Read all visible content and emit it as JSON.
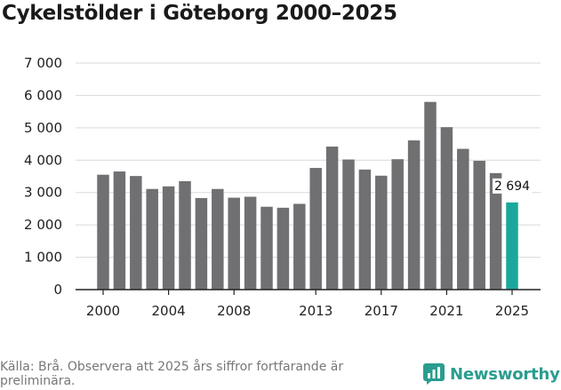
{
  "title": "Cykelstölder i Göteborg 2000–2025",
  "source_text": "Källa: Brå. Observera att 2025 års siffror fortfarande är preliminära.",
  "brand": "Newsworthy",
  "colors": {
    "bar": "#707073",
    "highlight": "#1aa89c",
    "brand": "#2a9d8f",
    "grid": "#d9d9d9",
    "axis": "#222222"
  },
  "chart_data": {
    "type": "bar",
    "title": "Cykelstölder i Göteborg 2000–2025",
    "xlabel": "",
    "ylabel": "",
    "ylim": [
      0,
      7000
    ],
    "grid": true,
    "yticks": [
      0,
      1000,
      2000,
      3000,
      4000,
      5000,
      6000,
      7000
    ],
    "ytick_labels": [
      "0",
      "1 000",
      "2 000",
      "3 000",
      "4 000",
      "5 000",
      "6 000",
      "7 000"
    ],
    "xtick_labels": [
      "2000",
      "2004",
      "2008",
      "2013",
      "2017",
      "2021",
      "2025"
    ],
    "categories": [
      2000,
      2001,
      2002,
      2003,
      2004,
      2005,
      2006,
      2007,
      2008,
      2009,
      2010,
      2011,
      2012,
      2013,
      2014,
      2015,
      2016,
      2017,
      2018,
      2019,
      2020,
      2021,
      2022,
      2023,
      2024,
      2025
    ],
    "values": [
      3550,
      3650,
      3510,
      3110,
      3190,
      3350,
      2830,
      3110,
      2840,
      2870,
      2560,
      2530,
      2650,
      3760,
      4420,
      4020,
      3710,
      3520,
      4030,
      4610,
      5800,
      5020,
      4350,
      3980,
      3600,
      2694
    ],
    "highlight_index": 25,
    "data_labels": [
      {
        "index": 25,
        "text": "2 694"
      }
    ]
  }
}
